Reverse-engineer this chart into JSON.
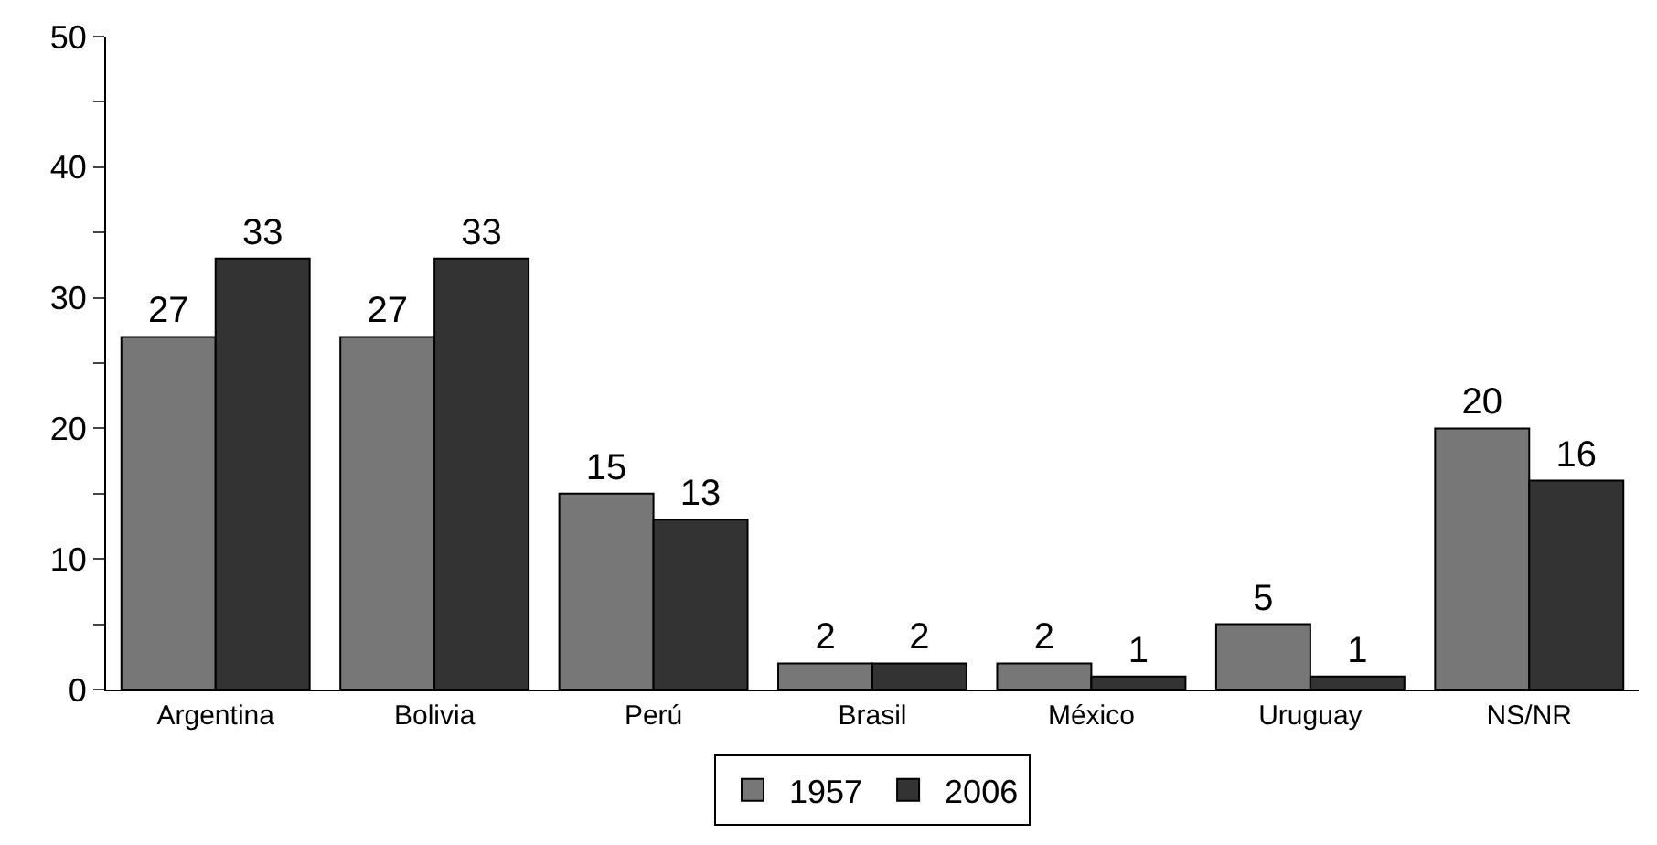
{
  "chart_data": {
    "type": "bar",
    "categories": [
      "Argentina",
      "Bolivia",
      "Perú",
      "Brasil",
      "México",
      "Uruguay",
      "NS/NR"
    ],
    "series": [
      {
        "name": "1957",
        "color": "#777777",
        "values": [
          27,
          27,
          15,
          2,
          2,
          5,
          20
        ]
      },
      {
        "name": "2006",
        "color": "#333333",
        "values": [
          33,
          33,
          13,
          2,
          1,
          1,
          16
        ]
      }
    ],
    "ylim": [
      0,
      50
    ],
    "yticks": [
      0,
      {
        "value": 5,
        "label": null
      },
      10,
      {
        "value": 15,
        "label": null
      },
      20,
      {
        "value": 25,
        "label": null
      },
      30,
      {
        "value": 35,
        "label": null
      },
      40,
      {
        "value": 45,
        "label": null
      },
      50
    ],
    "legend": "bottom",
    "data_labels": true
  }
}
